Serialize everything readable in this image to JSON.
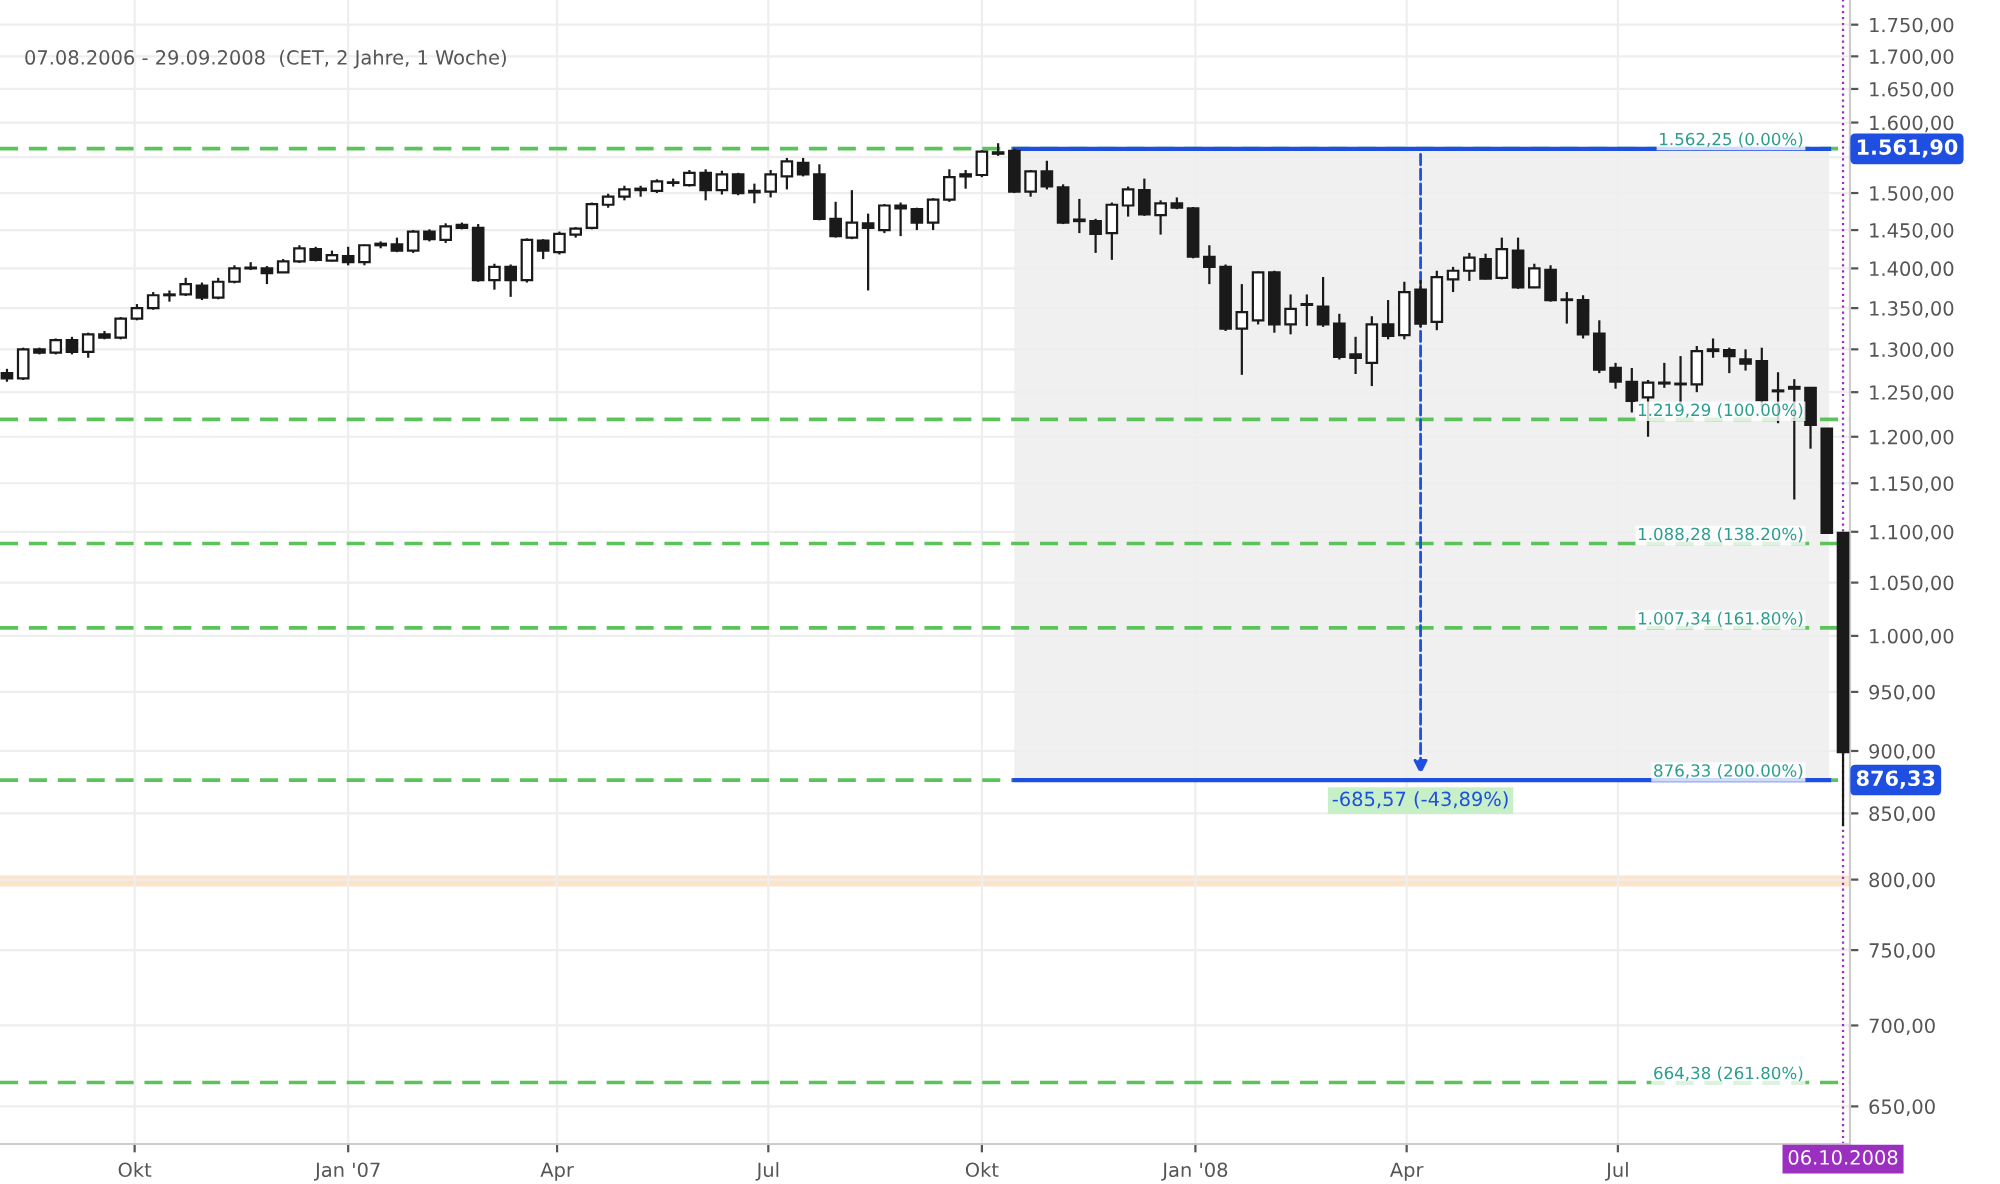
{
  "chart_data": {
    "type": "candlestick",
    "subtitle": "07.08.2006 - 29.09.2008  (CET, 2 Jahre, 1 Woche)",
    "color": "#1a1a1a",
    "x": [
      "2006-08-07",
      "2006-08-14",
      "2006-08-21",
      "2006-08-28",
      "2006-09-04",
      "2006-09-11",
      "2006-09-18",
      "2006-09-25",
      "2006-10-02",
      "2006-10-09",
      "2006-10-16",
      "2006-10-23",
      "2006-10-30",
      "2006-11-06",
      "2006-11-13",
      "2006-11-20",
      "2006-11-27",
      "2006-12-04",
      "2006-12-11",
      "2006-12-18",
      "2006-12-25",
      "2007-01-01",
      "2007-01-08",
      "2007-01-15",
      "2007-01-22",
      "2007-01-29",
      "2007-02-05",
      "2007-02-12",
      "2007-02-19",
      "2007-02-26",
      "2007-03-05",
      "2007-03-12",
      "2007-03-19",
      "2007-03-26",
      "2007-04-02",
      "2007-04-09",
      "2007-04-16",
      "2007-04-23",
      "2007-04-30",
      "2007-05-07",
      "2007-05-14",
      "2007-05-21",
      "2007-05-28",
      "2007-06-04",
      "2007-06-11",
      "2007-06-18",
      "2007-06-25",
      "2007-07-02",
      "2007-07-09",
      "2007-07-16",
      "2007-07-23",
      "2007-07-30",
      "2007-08-06",
      "2007-08-13",
      "2007-08-20",
      "2007-08-27",
      "2007-09-03",
      "2007-09-10",
      "2007-09-17",
      "2007-09-24",
      "2007-10-01",
      "2007-10-08",
      "2007-10-15",
      "2007-10-22",
      "2007-10-29",
      "2007-11-05",
      "2007-11-12",
      "2007-11-19",
      "2007-11-26",
      "2007-12-03",
      "2007-12-10",
      "2007-12-17",
      "2007-12-24",
      "2007-12-31",
      "2008-01-07",
      "2008-01-14",
      "2008-01-21",
      "2008-01-28",
      "2008-02-04",
      "2008-02-11",
      "2008-02-18",
      "2008-02-25",
      "2008-03-03",
      "2008-03-10",
      "2008-03-17",
      "2008-03-24",
      "2008-03-31",
      "2008-04-07",
      "2008-04-14",
      "2008-04-21",
      "2008-04-28",
      "2008-05-05",
      "2008-05-12",
      "2008-05-19",
      "2008-05-26",
      "2008-06-02",
      "2008-06-09",
      "2008-06-16",
      "2008-06-23",
      "2008-06-30",
      "2008-07-07",
      "2008-07-14",
      "2008-07-21",
      "2008-07-28",
      "2008-08-04",
      "2008-08-11",
      "2008-08-18",
      "2008-08-25",
      "2008-09-01",
      "2008-09-08",
      "2008-09-15",
      "2008-09-22",
      "2008-09-29",
      "2008-10-06"
    ],
    "ohlc": [
      [
        1272,
        1277,
        1262,
        1266
      ],
      [
        1266,
        1302,
        1264,
        1300
      ],
      [
        1300,
        1302,
        1294,
        1296
      ],
      [
        1296,
        1313,
        1294,
        1311
      ],
      [
        1311,
        1315,
        1294,
        1297
      ],
      [
        1297,
        1320,
        1290,
        1318
      ],
      [
        1318,
        1322,
        1312,
        1314
      ],
      [
        1314,
        1339,
        1312,
        1337
      ],
      [
        1337,
        1355,
        1335,
        1350
      ],
      [
        1350,
        1370,
        1348,
        1366
      ],
      [
        1366,
        1372,
        1358,
        1367
      ],
      [
        1367,
        1388,
        1365,
        1380
      ],
      [
        1378,
        1382,
        1360,
        1363
      ],
      [
        1363,
        1388,
        1361,
        1383
      ],
      [
        1383,
        1404,
        1381,
        1400
      ],
      [
        1400,
        1408,
        1398,
        1401
      ],
      [
        1400,
        1403,
        1380,
        1394
      ],
      [
        1395,
        1412,
        1394,
        1409
      ],
      [
        1409,
        1430,
        1407,
        1426
      ],
      [
        1425,
        1428,
        1409,
        1411
      ],
      [
        1410,
        1423,
        1409,
        1417
      ],
      [
        1416,
        1428,
        1404,
        1408
      ],
      [
        1408,
        1431,
        1404,
        1430
      ],
      [
        1430,
        1435,
        1426,
        1432
      ],
      [
        1431,
        1440,
        1421,
        1423
      ],
      [
        1423,
        1450,
        1420,
        1448
      ],
      [
        1448,
        1451,
        1435,
        1438
      ],
      [
        1437,
        1459,
        1433,
        1455
      ],
      [
        1457,
        1460,
        1451,
        1453
      ],
      [
        1453,
        1458,
        1383,
        1385
      ],
      [
        1385,
        1406,
        1373,
        1402
      ],
      [
        1402,
        1405,
        1364,
        1385
      ],
      [
        1385,
        1439,
        1382,
        1437
      ],
      [
        1436,
        1438,
        1412,
        1423
      ],
      [
        1421,
        1448,
        1418,
        1445
      ],
      [
        1444,
        1454,
        1440,
        1452
      ],
      [
        1453,
        1487,
        1451,
        1485
      ],
      [
        1484,
        1499,
        1480,
        1495
      ],
      [
        1495,
        1510,
        1490,
        1505
      ],
      [
        1504,
        1510,
        1495,
        1506
      ],
      [
        1503,
        1519,
        1500,
        1516
      ],
      [
        1514,
        1520,
        1509,
        1514
      ],
      [
        1511,
        1532,
        1509,
        1528
      ],
      [
        1528,
        1533,
        1490,
        1504
      ],
      [
        1504,
        1531,
        1498,
        1526
      ],
      [
        1526,
        1528,
        1497,
        1500
      ],
      [
        1501,
        1513,
        1486,
        1503
      ],
      [
        1502,
        1532,
        1494,
        1526
      ],
      [
        1523,
        1549,
        1505,
        1544
      ],
      [
        1542,
        1549,
        1523,
        1526
      ],
      [
        1526,
        1540,
        1463,
        1465
      ],
      [
        1465,
        1488,
        1440,
        1442
      ],
      [
        1440,
        1504,
        1438,
        1460
      ],
      [
        1459,
        1472,
        1372,
        1453
      ],
      [
        1450,
        1485,
        1446,
        1483
      ],
      [
        1483,
        1487,
        1442,
        1479
      ],
      [
        1478,
        1480,
        1450,
        1460
      ],
      [
        1460,
        1493,
        1450,
        1491
      ],
      [
        1491,
        1533,
        1488,
        1522
      ],
      [
        1523,
        1532,
        1506,
        1526
      ],
      [
        1525,
        1560,
        1522,
        1558
      ],
      [
        1555,
        1570,
        1552,
        1557
      ],
      [
        1559,
        1562,
        1500,
        1502
      ],
      [
        1502,
        1532,
        1495,
        1530
      ],
      [
        1530,
        1545,
        1505,
        1509
      ],
      [
        1508,
        1512,
        1458,
        1460
      ],
      [
        1464,
        1492,
        1446,
        1462
      ],
      [
        1462,
        1465,
        1420,
        1445
      ],
      [
        1446,
        1487,
        1411,
        1484
      ],
      [
        1483,
        1509,
        1468,
        1505
      ],
      [
        1504,
        1520,
        1469,
        1471
      ],
      [
        1470,
        1490,
        1444,
        1486
      ],
      [
        1486,
        1494,
        1478,
        1480
      ],
      [
        1479,
        1481,
        1413,
        1415
      ],
      [
        1415,
        1430,
        1380,
        1402
      ],
      [
        1402,
        1405,
        1322,
        1325
      ],
      [
        1325,
        1380,
        1270,
        1345
      ],
      [
        1335,
        1396,
        1330,
        1395
      ],
      [
        1395,
        1397,
        1320,
        1330
      ],
      [
        1330,
        1367,
        1318,
        1349
      ],
      [
        1354,
        1367,
        1328,
        1355
      ],
      [
        1352,
        1389,
        1327,
        1330
      ],
      [
        1331,
        1343,
        1288,
        1291
      ],
      [
        1294,
        1315,
        1271,
        1290
      ],
      [
        1284,
        1340,
        1257,
        1330
      ],
      [
        1330,
        1360,
        1312,
        1316
      ],
      [
        1317,
        1383,
        1312,
        1370
      ],
      [
        1373,
        1385,
        1327,
        1331
      ],
      [
        1333,
        1397,
        1323,
        1389
      ],
      [
        1386,
        1402,
        1370,
        1397
      ],
      [
        1397,
        1420,
        1384,
        1414
      ],
      [
        1412,
        1419,
        1386,
        1387
      ],
      [
        1388,
        1440,
        1386,
        1425
      ],
      [
        1423,
        1440,
        1374,
        1376
      ],
      [
        1376,
        1406,
        1375,
        1400
      ],
      [
        1398,
        1404,
        1358,
        1360
      ],
      [
        1360,
        1370,
        1331,
        1360
      ],
      [
        1360,
        1366,
        1313,
        1318
      ],
      [
        1319,
        1335,
        1272,
        1276
      ],
      [
        1278,
        1284,
        1254,
        1262
      ],
      [
        1262,
        1278,
        1227,
        1240
      ],
      [
        1244,
        1264,
        1200,
        1261
      ],
      [
        1261,
        1284,
        1255,
        1260
      ],
      [
        1259,
        1292,
        1236,
        1259
      ],
      [
        1259,
        1304,
        1250,
        1298
      ],
      [
        1298,
        1313,
        1290,
        1300
      ],
      [
        1299,
        1302,
        1272,
        1292
      ],
      [
        1288,
        1300,
        1275,
        1283
      ],
      [
        1286,
        1302,
        1233,
        1241
      ],
      [
        1252,
        1273,
        1215,
        1251
      ],
      [
        1254,
        1265,
        1133,
        1256
      ],
      [
        1255,
        1256,
        1187,
        1213
      ],
      [
        1209,
        1209,
        1098,
        1099
      ],
      [
        1099,
        1099,
        840,
        899
      ]
    ],
    "log": true,
    "xlim": [
      "2006-08-04",
      "2008-10-09"
    ],
    "xticks": [
      {
        "value": "2006-10-01",
        "label": "Okt"
      },
      {
        "value": "2007-01-01",
        "label": "Jan '07"
      },
      {
        "value": "2007-04-01",
        "label": "Apr"
      },
      {
        "value": "2007-07-01",
        "label": "Jul"
      },
      {
        "value": "2007-10-01",
        "label": "Okt"
      },
      {
        "value": "2008-01-01",
        "label": "Jan '08"
      },
      {
        "value": "2008-04-01",
        "label": "Apr"
      },
      {
        "value": "2008-07-01",
        "label": "Jul"
      }
    ],
    "ylim": [
      628,
      1790
    ],
    "yticks": [
      {
        "value": 650,
        "label": "650,00"
      },
      {
        "value": 700,
        "label": "700,00"
      },
      {
        "value": 750,
        "label": "750,00"
      },
      {
        "value": 800,
        "label": "800,00"
      },
      {
        "value": 850,
        "label": "850,00"
      },
      {
        "value": 900,
        "label": "900,00"
      },
      {
        "value": 950,
        "label": "950,00"
      },
      {
        "value": 1000,
        "label": "1.000,00"
      },
      {
        "value": 1050,
        "label": "1.050,00"
      },
      {
        "value": 1100,
        "label": "1.100,00"
      },
      {
        "value": 1150,
        "label": "1.150,00"
      },
      {
        "value": 1200,
        "label": "1.200,00"
      },
      {
        "value": 1250,
        "label": "1.250,00"
      },
      {
        "value": 1300,
        "label": "1.300,00"
      },
      {
        "value": 1350,
        "label": "1.350,00"
      },
      {
        "value": 1400,
        "label": "1.400,00"
      },
      {
        "value": 1450,
        "label": "1.450,00"
      },
      {
        "value": 1500,
        "label": "1.500,00"
      },
      {
        "value": 1550,
        "label": null
      },
      {
        "value": 1600,
        "label": "1.600,00"
      },
      {
        "value": 1650,
        "label": "1.650,00"
      },
      {
        "value": 1700,
        "label": "1.700,00"
      },
      {
        "value": 1750,
        "label": "1.750,00"
      }
    ],
    "grid": true,
    "bands": [
      {
        "axis": "x",
        "from": "2007-10-15",
        "to": "2008-09-30",
        "color": "#f0f0f0"
      },
      {
        "axis": "y",
        "from": 795,
        "to": 803,
        "color": "#fde3c8"
      }
    ],
    "ref_lines": [
      {
        "axis": "y",
        "value": 1562.25,
        "label": "1.562,25 (0.00%)",
        "color": "#5cc35c",
        "line_style": "dashed"
      },
      {
        "axis": "y",
        "value": 1219.29,
        "label": "1.219,29 (100.00%)",
        "color": "#5cc35c",
        "line_style": "dashed"
      },
      {
        "axis": "y",
        "value": 1088.28,
        "label": "1.088,28 (138.20%)",
        "color": "#5cc35c",
        "line_style": "dashed"
      },
      {
        "axis": "y",
        "value": 1007.34,
        "label": "1.007,34 (161.80%)",
        "color": "#5cc35c",
        "line_style": "dashed"
      },
      {
        "axis": "y",
        "value": 876.33,
        "label": "876,33 (200.00%)",
        "color": "#5cc35c",
        "line_style": "dashed"
      },
      {
        "axis": "y",
        "value": 664.38,
        "label": "664,38 (261.80%)",
        "color": "#5cc35c",
        "line_style": "dashed"
      },
      {
        "axis": "y",
        "value": 1561.9,
        "label": "1.561,90",
        "color": "#1f4fe0",
        "line_style": "solid"
      },
      {
        "axis": "y",
        "value": 876.33,
        "label": "876,33",
        "color": "#1f4fe0",
        "line_style": "solid"
      },
      {
        "axis": "x",
        "value": "2008-10-06",
        "label": "06.10.2008",
        "color": "#9b30c0",
        "line_style": "dotted"
      }
    ],
    "annotations": [
      {
        "text": "-685,57 (-43,89%)",
        "x": "2008-04-07",
        "y": 876.33
      }
    ]
  }
}
